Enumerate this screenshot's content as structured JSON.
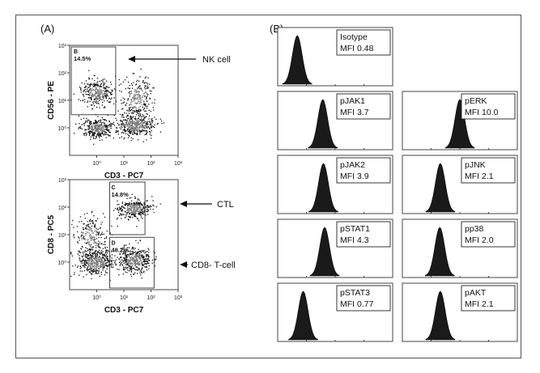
{
  "panel_a_label": "(A)",
  "panel_b_label": "(B)",
  "chart_data": [
    {
      "type": "scatter",
      "panel": "A-top",
      "xlabel": "CD3 - PC7",
      "ylabel": "CD56 - PE",
      "x_scale": "log",
      "y_scale": "log",
      "xlim": [
        0.1,
        1000
      ],
      "ylim": [
        0.1,
        1000
      ],
      "x_ticks": [
        "10⁰",
        "10¹",
        "10²",
        "10³"
      ],
      "y_ticks": [
        "10⁰",
        "10¹",
        "10²",
        "10³"
      ],
      "gates": [
        {
          "name": "B",
          "percent": "14.5%"
        }
      ],
      "annotations": [
        "NK cell"
      ],
      "populations": [
        {
          "name": "CD3- CD56+",
          "x_center": 1.0,
          "y_center": 20
        },
        {
          "name": "CD3- CD56-",
          "x_center": 1.0,
          "y_center": 1.0
        },
        {
          "name": "CD3+ CD56+",
          "x_center": 30,
          "y_center": 12
        },
        {
          "name": "CD3+ CD56-",
          "x_center": 25,
          "y_center": 1.3
        }
      ]
    },
    {
      "type": "scatter",
      "panel": "A-bottom",
      "xlabel": "CD3  - PC7",
      "ylabel": "CD8 - PC5",
      "x_scale": "log",
      "y_scale": "log",
      "xlim": [
        0.1,
        1000
      ],
      "ylim": [
        0.1,
        1000
      ],
      "x_ticks": [
        "10⁰",
        "10¹",
        "10²",
        "10³"
      ],
      "y_ticks": [
        "10⁰",
        "10¹",
        "10²",
        "10³"
      ],
      "gates": [
        {
          "name": "C",
          "percent": "14.8%"
        },
        {
          "name": "D",
          "percent": "48.2%"
        }
      ],
      "annotations": [
        "CTL",
        "CD8- T-cell"
      ],
      "populations": [
        {
          "name": "CD3- CD8+",
          "x_center": 0.6,
          "y_center": 8
        },
        {
          "name": "CD3- CD8-",
          "x_center": 0.9,
          "y_center": 1.0
        },
        {
          "name": "CD3+ CD8+",
          "x_center": 22,
          "y_center": 90
        },
        {
          "name": "CD3+ CD8-",
          "x_center": 25,
          "y_center": 1.2
        }
      ]
    },
    {
      "type": "histogram",
      "panel": "B",
      "x_scale": "log",
      "xlim": [
        0.1,
        1000
      ],
      "panels": [
        {
          "label": "Isotype",
          "mfi_text": "MFI  0.48",
          "mfi": 0.48
        },
        {
          "label": "pJAK1",
          "mfi_text": "MFI  3.7",
          "mfi": 3.7
        },
        {
          "label": "pERK",
          "mfi_text": "MFI  10.0",
          "mfi": 10.0
        },
        {
          "label": "pJAK2",
          "mfi_text": "MFI  3.9",
          "mfi": 3.9
        },
        {
          "label": "pJNK",
          "mfi_text": "MFI  2.1",
          "mfi": 2.1
        },
        {
          "label": "pSTAT1",
          "mfi_text": "MFI  4.3",
          "mfi": 4.3
        },
        {
          "label": "pp38",
          "mfi_text": "MFI  2.0",
          "mfi": 2.0
        },
        {
          "label": "pSTAT3",
          "mfi_text": "MFI  0.77",
          "mfi": 0.77
        },
        {
          "label": "pAKT",
          "mfi_text": "MFI  2.1",
          "mfi": 2.1
        }
      ]
    }
  ]
}
